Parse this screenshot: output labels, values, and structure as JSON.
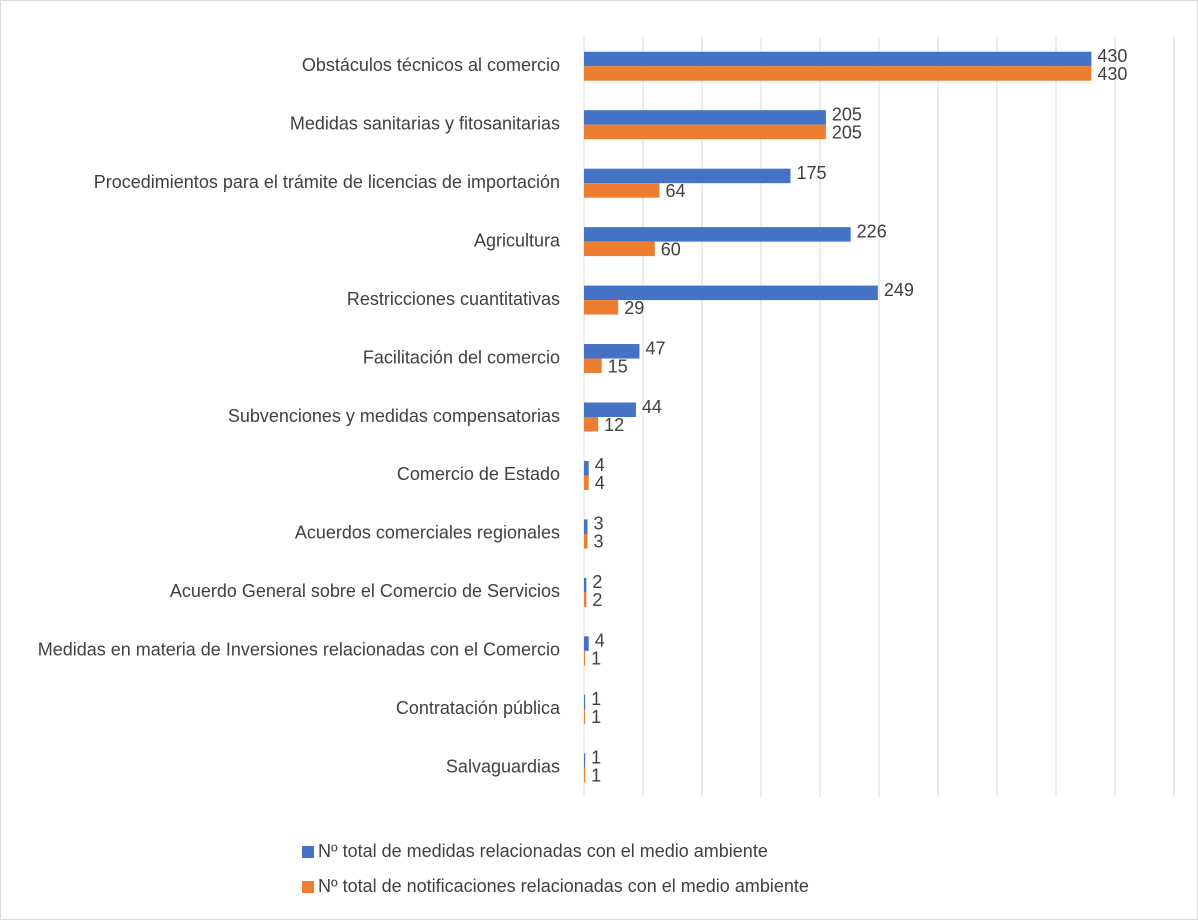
{
  "chart_data": {
    "type": "bar",
    "orientation": "horizontal",
    "categories": [
      "Obstáculos técnicos al comercio",
      "Medidas sanitarias y fitosanitarias",
      "Procedimientos para el trámite de licencias de importación",
      "Agricultura",
      "Restricciones cuantitativas",
      "Facilitación del comercio",
      "Subvenciones y medidas compensatorias",
      "Comercio de Estado",
      "Acuerdos comerciales regionales",
      "Acuerdo General sobre el Comercio de Servicios",
      "Medidas en materia de Inversiones relacionadas con el Comercio",
      "Contratación pública",
      "Salvaguardias"
    ],
    "series": [
      {
        "name": "Nº total de medidas relacionadas con el medio ambiente",
        "color": "#4472c4",
        "values": [
          430,
          205,
          175,
          226,
          249,
          47,
          44,
          4,
          3,
          2,
          4,
          1,
          1
        ]
      },
      {
        "name": "Nº total de notificaciones relacionadas con el medio ambiente",
        "color": "#ed7d31",
        "values": [
          430,
          205,
          64,
          60,
          29,
          15,
          12,
          4,
          3,
          2,
          1,
          1,
          1
        ]
      }
    ],
    "xlim": [
      0,
      500
    ],
    "xticks": [
      0,
      50,
      100,
      150,
      200,
      250,
      300,
      350,
      400,
      450,
      500
    ],
    "grid": true,
    "legend": "bottom"
  }
}
